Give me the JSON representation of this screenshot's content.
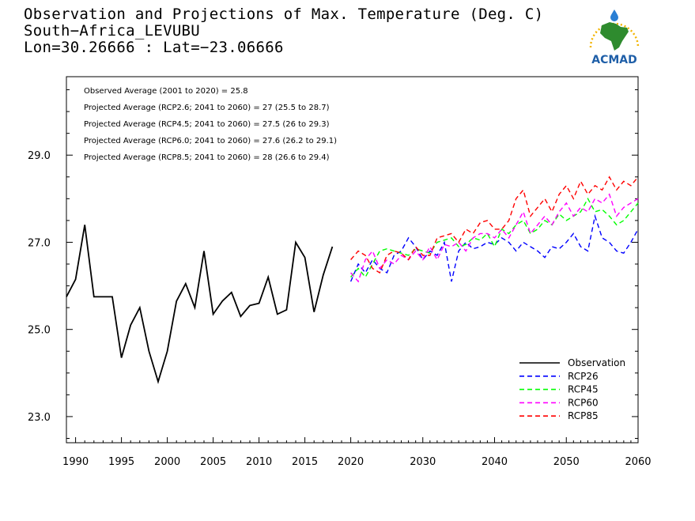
{
  "title": {
    "line1": "Observation and Projections of Max. Temperature (Deg. C)",
    "line2": "South−Africa_LEVUBU",
    "line3": "Lon=30.26666 : Lat=−23.06666"
  },
  "logo": {
    "text": "ACMAD",
    "colors": {
      "africa": "#2e8b2e",
      "text": "#1f5fa8",
      "sun": "#f2b400",
      "drop": "#2a7fd4"
    }
  },
  "annotations": [
    "Observed Average (2001 to 2020) = 25.8",
    "Projected Average (RCP2.6; 2041 to 2060) = 27 (25.5 to 28.7)",
    "Projected Average (RCP4.5; 2041 to 2060) = 27.5 (26 to 29.3)",
    "Projected Average (RCP6.0; 2041 to 2060) = 27.6 (26.2 to 29.1)",
    "Projected Average (RCP8.5; 2041 to 2060) = 28 (26.6 to 29.4)"
  ],
  "chart_data": {
    "type": "line",
    "title": "Observation and Projections of Max. Temperature (Deg. C)",
    "xlabel": "",
    "ylabel": "",
    "x_axis_note": "x axis is piecewise: 1990-2020 compressed, 2020-2060 expanded",
    "xlim": [
      1989,
      2060
    ],
    "ylim": [
      22.4,
      30.8
    ],
    "xticks": [
      {
        "value": 1990,
        "label": "1990"
      },
      {
        "value": 1995,
        "label": "1995"
      },
      {
        "value": 2000,
        "label": "2000"
      },
      {
        "value": 2005,
        "label": "2005"
      },
      {
        "value": 2010,
        "label": "2010"
      },
      {
        "value": 2015,
        "label": "2015"
      },
      {
        "value": 2020,
        "label": "2020"
      },
      {
        "value": 2030,
        "label": "2030"
      },
      {
        "value": 2040,
        "label": "2040"
      },
      {
        "value": 2050,
        "label": "2050"
      },
      {
        "value": 2060,
        "label": "2060"
      }
    ],
    "yticks": [
      {
        "value": 23.0,
        "label": "23.0"
      },
      {
        "value": 25.0,
        "label": "25.0"
      },
      {
        "value": 27.0,
        "label": "27.0"
      },
      {
        "value": 29.0,
        "label": "29.0"
      }
    ],
    "grid": false,
    "legend_position": "bottom-right",
    "series": [
      {
        "name": "Observation",
        "color": "#000000",
        "dashed": false,
        "x": [
          1989,
          1990,
          1991,
          1992,
          1993,
          1994,
          1995,
          1996,
          1997,
          1998,
          1999,
          2000,
          2001,
          2002,
          2003,
          2004,
          2005,
          2006,
          2007,
          2008,
          2009,
          2010,
          2011,
          2012,
          2013,
          2014,
          2015,
          2016,
          2017,
          2018,
          2019
        ],
        "y": [
          25.75,
          26.15,
          27.4,
          25.75,
          25.75,
          25.75,
          24.35,
          25.1,
          25.5,
          24.5,
          23.8,
          24.5,
          25.65,
          26.05,
          25.5,
          26.8,
          25.35,
          25.65,
          25.85,
          25.3,
          25.55,
          25.6,
          26.2,
          25.35,
          25.45,
          27.0,
          26.65,
          25.4,
          26.25,
          26.9,
          null
        ]
      },
      {
        "name": "RCP26",
        "color": "#0000ff",
        "dashed": true,
        "x": [
          2020,
          2021,
          2022,
          2023,
          2024,
          2025,
          2026,
          2027,
          2028,
          2029,
          2030,
          2031,
          2032,
          2033,
          2034,
          2035,
          2036,
          2037,
          2038,
          2039,
          2040,
          2041,
          2042,
          2043,
          2044,
          2045,
          2046,
          2047,
          2048,
          2049,
          2050,
          2051,
          2052,
          2053,
          2054,
          2055,
          2056,
          2057,
          2058,
          2059,
          2060
        ],
        "y": [
          26.1,
          26.5,
          26.3,
          26.6,
          26.4,
          26.3,
          26.7,
          26.8,
          27.1,
          26.9,
          26.6,
          26.8,
          26.7,
          27.0,
          26.1,
          26.8,
          27.0,
          26.85,
          26.9,
          27.0,
          26.95,
          27.1,
          27.0,
          26.8,
          27.0,
          26.9,
          26.8,
          26.65,
          26.9,
          26.85,
          27.0,
          27.2,
          26.9,
          26.8,
          27.6,
          27.1,
          27.0,
          26.8,
          26.75,
          27.0,
          27.3
        ]
      },
      {
        "name": "RCP45",
        "color": "#00ff00",
        "dashed": true,
        "x": [
          2020,
          2021,
          2022,
          2023,
          2024,
          2025,
          2026,
          2027,
          2028,
          2029,
          2030,
          2031,
          2032,
          2033,
          2034,
          2035,
          2036,
          2037,
          2038,
          2039,
          2040,
          2041,
          2042,
          2043,
          2044,
          2045,
          2046,
          2047,
          2048,
          2049,
          2050,
          2051,
          2052,
          2053,
          2054,
          2055,
          2056,
          2057,
          2058,
          2059,
          2060
        ],
        "y": [
          26.2,
          26.4,
          26.2,
          26.5,
          26.8,
          26.85,
          26.8,
          26.75,
          26.7,
          26.85,
          26.8,
          26.75,
          27.0,
          27.05,
          27.1,
          26.9,
          26.95,
          27.1,
          27.05,
          27.2,
          26.9,
          27.3,
          27.2,
          27.4,
          27.5,
          27.2,
          27.3,
          27.5,
          27.4,
          27.65,
          27.5,
          27.6,
          27.7,
          28.0,
          27.7,
          27.75,
          27.6,
          27.4,
          27.5,
          27.7,
          27.9
        ]
      },
      {
        "name": "RCP60",
        "color": "#ff00ff",
        "dashed": true,
        "x": [
          2020,
          2021,
          2022,
          2023,
          2024,
          2025,
          2026,
          2027,
          2028,
          2029,
          2030,
          2031,
          2032,
          2033,
          2034,
          2035,
          2036,
          2037,
          2038,
          2039,
          2040,
          2041,
          2042,
          2043,
          2044,
          2045,
          2046,
          2047,
          2048,
          2049,
          2050,
          2051,
          2052,
          2053,
          2054,
          2055,
          2056,
          2057,
          2058,
          2059,
          2060
        ],
        "y": [
          26.3,
          26.1,
          26.6,
          26.8,
          26.4,
          26.6,
          26.5,
          26.7,
          26.6,
          26.8,
          26.6,
          26.9,
          26.6,
          26.95,
          26.9,
          27.0,
          26.8,
          27.1,
          27.2,
          27.2,
          27.1,
          27.3,
          27.1,
          27.4,
          27.7,
          27.2,
          27.4,
          27.6,
          27.4,
          27.7,
          27.9,
          27.6,
          27.8,
          27.7,
          28.0,
          27.9,
          28.1,
          27.6,
          27.8,
          27.9,
          28.0
        ]
      },
      {
        "name": "RCP85",
        "color": "#ff0000",
        "dashed": true,
        "x": [
          2020,
          2021,
          2022,
          2023,
          2024,
          2025,
          2026,
          2027,
          2028,
          2029,
          2030,
          2031,
          2032,
          2033,
          2034,
          2035,
          2036,
          2037,
          2038,
          2039,
          2040,
          2041,
          2042,
          2043,
          2044,
          2045,
          2046,
          2047,
          2048,
          2049,
          2050,
          2051,
          2052,
          2053,
          2054,
          2055,
          2056,
          2057,
          2058,
          2059,
          2060
        ],
        "y": [
          26.6,
          26.8,
          26.7,
          26.4,
          26.3,
          26.7,
          26.8,
          26.75,
          26.6,
          26.9,
          26.7,
          26.7,
          27.1,
          27.15,
          27.2,
          27.0,
          27.3,
          27.2,
          27.45,
          27.5,
          27.3,
          27.3,
          27.5,
          28.0,
          28.2,
          27.6,
          27.8,
          28.0,
          27.7,
          28.1,
          28.3,
          28.0,
          28.4,
          28.1,
          28.3,
          28.2,
          28.5,
          28.2,
          28.4,
          28.3,
          28.5
        ]
      }
    ]
  }
}
